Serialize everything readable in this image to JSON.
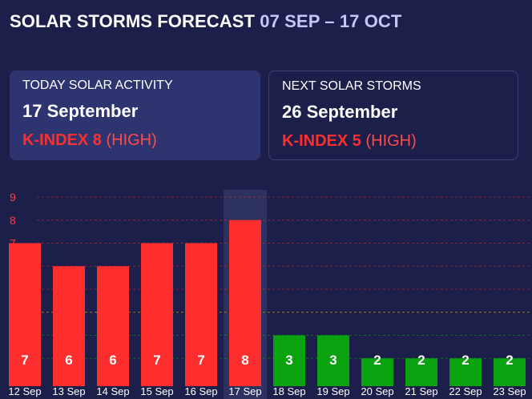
{
  "header": {
    "title": "SOLAR STORMS FORECAST",
    "range": "07 SEP – 17 OCT"
  },
  "today": {
    "label": "TODAY SOLAR ACTIVITY",
    "date": "17 September",
    "kindex": "K-INDEX 8",
    "level": "(HIGH)"
  },
  "next": {
    "label": "NEXT SOLAR STORMS",
    "date": "26 September",
    "kindex": "K-INDEX 5",
    "level": "(HIGH)"
  },
  "colors": {
    "high": "#ff2e2e",
    "low": "#0aa30f",
    "background": "#1c1f4a",
    "card": "#2e3470",
    "range_text": "#c3c6f8",
    "tick_high": "#ff3b3b",
    "tick_mid": "#f5c518",
    "tick_low": "#19c219"
  },
  "chart_data": {
    "type": "bar",
    "ylim": [
      1,
      9
    ],
    "yticks": [
      1,
      2,
      3,
      4,
      5,
      6,
      7,
      8,
      9
    ],
    "highlight": "17 Sep",
    "categories": [
      "12 Sep",
      "13 Sep",
      "14 Sep",
      "15 Sep",
      "16 Sep",
      "17 Sep",
      "18 Sep",
      "19 Sep",
      "20 Sep",
      "21 Sep",
      "22 Sep",
      "23 Sep"
    ],
    "values": [
      7,
      6,
      6,
      7,
      7,
      8,
      3,
      3,
      2,
      2,
      2,
      2
    ],
    "title": "",
    "xlabel": "",
    "ylabel": ""
  }
}
